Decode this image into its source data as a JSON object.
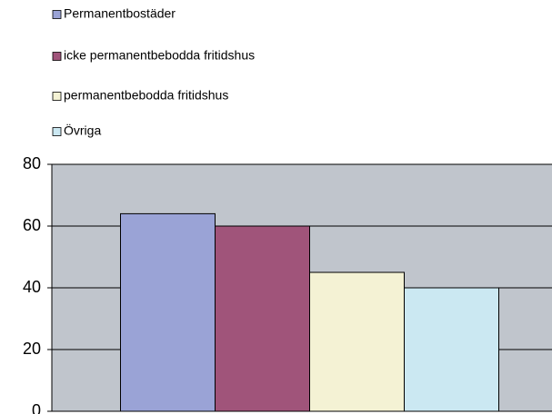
{
  "chart_data": {
    "type": "bar",
    "categories": [
      null
    ],
    "series": [
      {
        "name": "Permanentbostäder",
        "color": "#9aa3d6",
        "values": [
          64
        ]
      },
      {
        "name": "icke permanentbebodda fritidshus",
        "color": "#a0547a",
        "values": [
          60
        ]
      },
      {
        "name": "permanentbebodda fritidshus",
        "color": "#f4f2d4",
        "values": [
          45
        ]
      },
      {
        "name": "Övriga",
        "color": "#cbe8f2",
        "values": [
          40
        ]
      }
    ],
    "ylim": [
      0,
      80
    ],
    "yticks": [
      0,
      20,
      40,
      60,
      80
    ],
    "grid": true,
    "legend": "top"
  }
}
